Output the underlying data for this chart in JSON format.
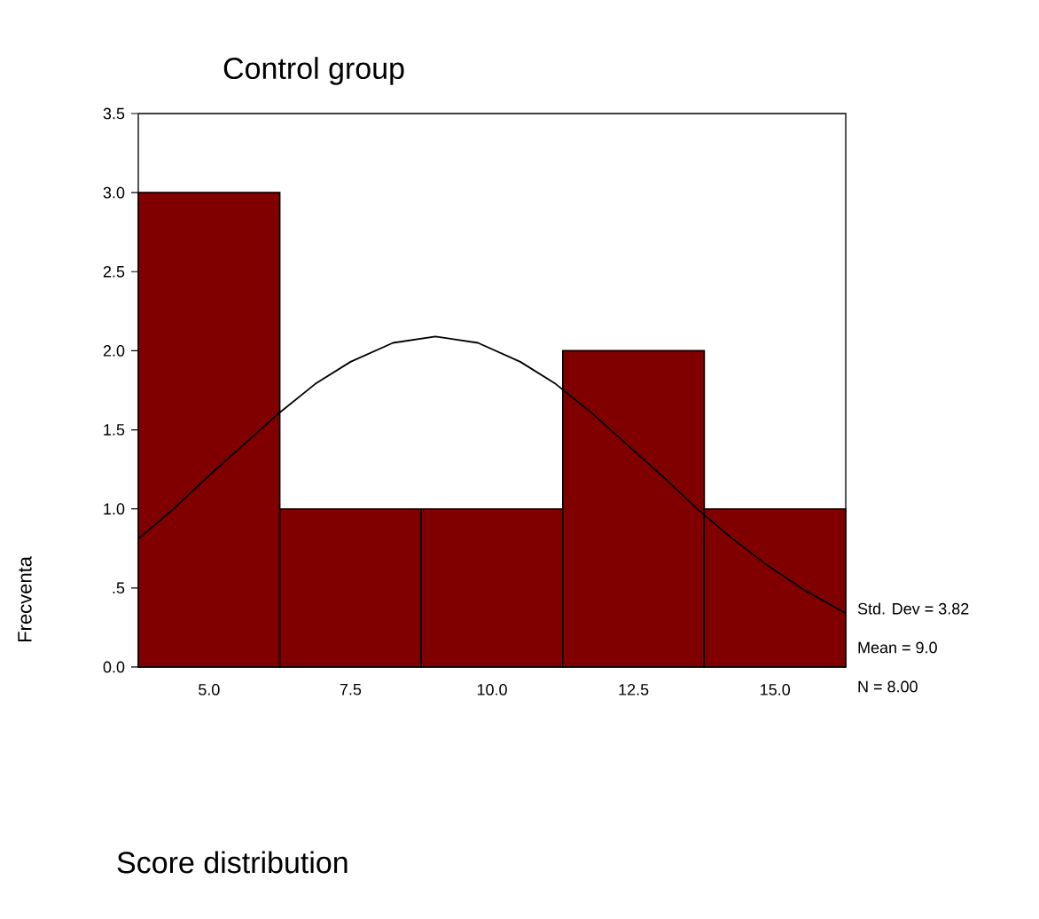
{
  "chart_data": {
    "type": "histogram",
    "title": "Control group",
    "ylabel": "Frecventa",
    "bins": [
      3.75,
      6.25,
      8.75,
      11.25,
      13.75,
      16.25
    ],
    "values": [
      3,
      1,
      1,
      2,
      1
    ],
    "color": "#800000",
    "series": [
      {
        "type": "line",
        "color": "#000000",
        "x": [
          3.75,
          4.375,
          5,
          5.625,
          6.25,
          6.875,
          7.5,
          8.25,
          9,
          9.75,
          10.5,
          11.125,
          11.75,
          12.375,
          13,
          13.625,
          14.25,
          14.875,
          15.5,
          16.25
        ],
        "values": [
          0.81,
          1.0,
          1.21,
          1.41,
          1.61,
          1.79,
          1.93,
          2.05,
          2.09,
          2.05,
          1.93,
          1.79,
          1.61,
          1.41,
          1.21,
          1.0,
          0.81,
          0.64,
          0.49,
          0.34
        ]
      }
    ],
    "xlim": [
      3.75,
      16.25
    ],
    "ylim": [
      0,
      3.5
    ],
    "xticks": [
      {
        "value": 5,
        "label": "5.0"
      },
      {
        "value": 7.5,
        "label": "7.5"
      },
      {
        "value": 10,
        "label": "10.0"
      },
      {
        "value": 12.5,
        "label": "12.5"
      },
      {
        "value": 15,
        "label": "15.0"
      }
    ],
    "yticks": [
      {
        "value": 0,
        "label": "0.0"
      },
      {
        "value": 0.5,
        "label": ".5"
      },
      {
        "value": 1,
        "label": "1.0"
      },
      {
        "value": 1.5,
        "label": "1.5"
      },
      {
        "value": 2,
        "label": "2.0"
      },
      {
        "value": 2.5,
        "label": "2.5"
      },
      {
        "value": 3,
        "label": "3.0"
      },
      {
        "value": 3.5,
        "label": "3.5"
      }
    ],
    "annotations": [
      "Std. Dev = 3.82",
      "Mean = 9.0",
      "N = 8.00",
      "Score distribution"
    ],
    "grid": false,
    "marker": "none",
    "line_style": "solid"
  }
}
